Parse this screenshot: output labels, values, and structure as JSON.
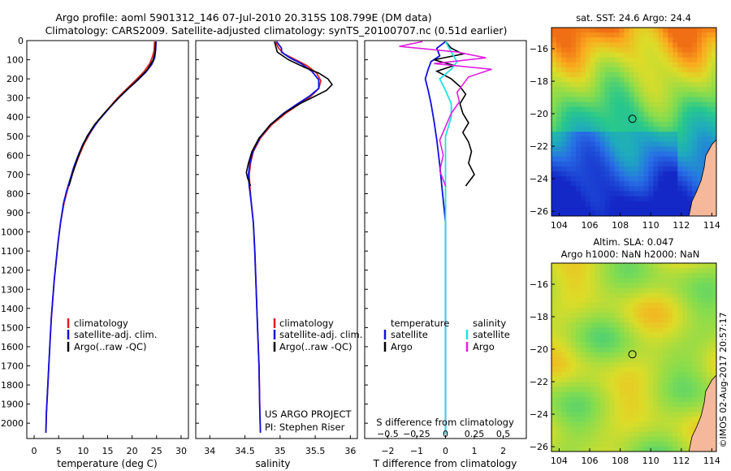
{
  "title_line1": "Argo profile: aoml 5901312_146 07-Jul-2010 20.315S 108.799E (DM data)",
  "title_line2": "Climatology: CARS2009. Satellite-adjusted climatology: synTS_20100707.nc (0.51d earlier)",
  "timestamp": "©IMOS 02-Aug-2017 20:57:17",
  "colors": {
    "climatology": "#e02020",
    "satellite": "#1010e0",
    "argo": "#000000",
    "argo_salinity": "#e020e0",
    "satellite_salinity": "#20e0e0"
  },
  "chart_data": [
    {
      "type": "line",
      "id": "temperature",
      "xlabel": "temperature (deg C)",
      "ylabel": "",
      "xlim": [
        -1.5,
        31.5
      ],
      "ylim": [
        2080,
        0
      ],
      "xticks": [
        0,
        5,
        10,
        15,
        20,
        25,
        30
      ],
      "xticklabels": [
        "0",
        "5",
        "10",
        "15",
        "20",
        "25",
        "30"
      ],
      "yticks": [
        0,
        100,
        200,
        300,
        400,
        500,
        600,
        700,
        800,
        900,
        1000,
        1100,
        1200,
        1300,
        1400,
        1500,
        1600,
        1700,
        1800,
        1900,
        2000
      ],
      "yticklabels": [
        "0",
        "100",
        "200",
        "300",
        "400",
        "500",
        "600",
        "700",
        "800",
        "900",
        "1000",
        "1100",
        "1200",
        "1300",
        "1400",
        "1500",
        "1600",
        "1700",
        "1800",
        "1900",
        "2000"
      ],
      "legend": [
        "climatology",
        "satellite-adj. clim.",
        "Argo(..raw -QC)"
      ],
      "series": [
        {
          "name": "climatology",
          "color": "#e02020",
          "points": [
            [
              24.6,
              5
            ],
            [
              24.5,
              50
            ],
            [
              24.2,
              80
            ],
            [
              23.6,
              120
            ],
            [
              22.5,
              160
            ],
            [
              21.0,
              200
            ],
            [
              19.0,
              250
            ],
            [
              17.0,
              300
            ],
            [
              15.0,
              360
            ],
            [
              13.0,
              420
            ],
            [
              11.5,
              480
            ],
            [
              10.2,
              540
            ],
            [
              9.2,
              600
            ],
            [
              8.3,
              660
            ],
            [
              7.5,
              720
            ],
            [
              6.8,
              780
            ],
            [
              6.1,
              850
            ],
            [
              5.4,
              950
            ],
            [
              4.9,
              1050
            ],
            [
              4.5,
              1150
            ],
            [
              4.1,
              1250
            ],
            [
              3.8,
              1350
            ],
            [
              3.5,
              1450
            ],
            [
              3.3,
              1550
            ],
            [
              3.1,
              1650
            ],
            [
              2.9,
              1750
            ],
            [
              2.7,
              1850
            ],
            [
              2.5,
              1950
            ],
            [
              2.4,
              2050
            ]
          ]
        },
        {
          "name": "satellite",
          "color": "#1010e0",
          "points": [
            [
              24.9,
              5
            ],
            [
              24.8,
              50
            ],
            [
              24.6,
              90
            ],
            [
              24.0,
              125
            ],
            [
              22.8,
              165
            ],
            [
              21.2,
              205
            ],
            [
              19.3,
              250
            ],
            [
              17.2,
              300
            ],
            [
              15.1,
              360
            ],
            [
              13.1,
              420
            ],
            [
              11.4,
              480
            ],
            [
              10.0,
              540
            ],
            [
              9.0,
              600
            ],
            [
              8.1,
              660
            ],
            [
              7.4,
              720
            ],
            [
              6.7,
              780
            ],
            [
              6.0,
              850
            ],
            [
              5.4,
              950
            ],
            [
              4.9,
              1050
            ],
            [
              4.5,
              1150
            ],
            [
              4.1,
              1250
            ],
            [
              3.8,
              1350
            ],
            [
              3.5,
              1450
            ],
            [
              3.3,
              1550
            ],
            [
              3.1,
              1650
            ],
            [
              2.9,
              1750
            ],
            [
              2.7,
              1850
            ],
            [
              2.5,
              1950
            ],
            [
              2.4,
              2050
            ]
          ]
        },
        {
          "name": "Argo",
          "color": "#000000",
          "points": [
            [
              24.8,
              5
            ],
            [
              24.7,
              60
            ],
            [
              24.3,
              100
            ],
            [
              23.2,
              150
            ],
            [
              21.9,
              185
            ],
            [
              20.5,
              220
            ],
            [
              18.6,
              265
            ],
            [
              16.5,
              320
            ],
            [
              14.3,
              380
            ],
            [
              12.3,
              440
            ],
            [
              10.8,
              500
            ],
            [
              9.7,
              560
            ],
            [
              8.8,
              620
            ],
            [
              7.9,
              690
            ],
            [
              7.1,
              760
            ]
          ]
        }
      ]
    },
    {
      "type": "line",
      "id": "salinity",
      "xlabel": "salinity",
      "xlim": [
        33.8,
        36.1
      ],
      "ylim": [
        2080,
        0
      ],
      "xticks": [
        34,
        34.5,
        35,
        35.5,
        36
      ],
      "xticklabels": [
        "34",
        "34.5",
        "35",
        "35.5",
        "36"
      ],
      "legend": [
        "climatology",
        "satellite-adj. clim.",
        "Argo(..raw -QC)"
      ],
      "annotation": [
        "US ARGO PROJECT",
        "PI: Stephen Riser"
      ],
      "series": [
        {
          "name": "climatology",
          "color": "#e02020",
          "points": [
            [
              34.93,
              5
            ],
            [
              34.98,
              40
            ],
            [
              35.06,
              70
            ],
            [
              35.22,
              100
            ],
            [
              35.38,
              130
            ],
            [
              35.52,
              170
            ],
            [
              35.58,
              210
            ],
            [
              35.55,
              250
            ],
            [
              35.44,
              290
            ],
            [
              35.28,
              330
            ],
            [
              35.08,
              380
            ],
            [
              34.88,
              440
            ],
            [
              34.72,
              510
            ],
            [
              34.62,
              580
            ],
            [
              34.58,
              640
            ],
            [
              34.56,
              700
            ],
            [
              34.57,
              760
            ],
            [
              34.59,
              850
            ],
            [
              34.62,
              950
            ],
            [
              34.64,
              1100
            ],
            [
              34.66,
              1300
            ],
            [
              34.68,
              1500
            ],
            [
              34.7,
              1700
            ],
            [
              34.71,
              1900
            ],
            [
              34.72,
              2050
            ]
          ]
        },
        {
          "name": "satellite",
          "color": "#1010e0",
          "points": [
            [
              34.95,
              5
            ],
            [
              35.02,
              40
            ],
            [
              35.02,
              60
            ],
            [
              35.14,
              90
            ],
            [
              35.3,
              120
            ],
            [
              35.45,
              160
            ],
            [
              35.55,
              205
            ],
            [
              35.55,
              250
            ],
            [
              35.42,
              290
            ],
            [
              35.25,
              330
            ],
            [
              35.05,
              380
            ],
            [
              34.86,
              440
            ],
            [
              34.71,
              510
            ],
            [
              34.61,
              580
            ],
            [
              34.57,
              640
            ],
            [
              34.55,
              700
            ],
            [
              34.56,
              760
            ],
            [
              34.59,
              850
            ],
            [
              34.62,
              950
            ],
            [
              34.64,
              1100
            ],
            [
              34.66,
              1300
            ],
            [
              34.68,
              1500
            ],
            [
              34.7,
              1700
            ],
            [
              34.71,
              1900
            ],
            [
              34.72,
              2050
            ]
          ]
        },
        {
          "name": "Argo",
          "color": "#000000",
          "points": [
            [
              34.92,
              5
            ],
            [
              34.96,
              60
            ],
            [
              35.12,
              100
            ],
            [
              35.35,
              140
            ],
            [
              35.55,
              170
            ],
            [
              35.68,
              200
            ],
            [
              35.74,
              230
            ],
            [
              35.66,
              260
            ],
            [
              35.5,
              290
            ],
            [
              35.28,
              330
            ],
            [
              35.06,
              380
            ],
            [
              34.86,
              440
            ],
            [
              34.7,
              510
            ],
            [
              34.6,
              580
            ],
            [
              34.55,
              640
            ],
            [
              34.52,
              690
            ],
            [
              34.54,
              720
            ],
            [
              34.58,
              760
            ]
          ]
        }
      ]
    },
    {
      "type": "line",
      "id": "difference",
      "xlabel": "T difference from climatology",
      "xlabel_top": "S difference from climatology",
      "xlim": [
        -2.8,
        2.8
      ],
      "ylim": [
        2080,
        0
      ],
      "xticks": [
        -2,
        -1,
        0,
        1,
        2
      ],
      "xticklabels": [
        "−2",
        "−1",
        "0",
        "1",
        "2"
      ],
      "sticks": [
        -0.5,
        -0.25,
        0,
        0.25,
        0.5
      ],
      "sticklabels": [
        "−0.5",
        "−0.25",
        "0",
        "0.25",
        "0.5"
      ],
      "legend_temperature": {
        "header": "temperature",
        "items": [
          "satellite",
          "Argo"
        ]
      },
      "legend_salinity": {
        "header": "salinity",
        "items": [
          "satellite",
          "Argo"
        ]
      },
      "series": [
        {
          "name": "temperature satellite",
          "color": "#1010e0",
          "points": [
            [
              0.0,
              5
            ],
            [
              -0.3,
              40
            ],
            [
              -0.2,
              80
            ],
            [
              -0.5,
              110
            ],
            [
              -0.6,
              150
            ],
            [
              -0.7,
              200
            ],
            [
              -0.6,
              260
            ],
            [
              -0.5,
              330
            ],
            [
              -0.4,
              420
            ],
            [
              -0.3,
              520
            ],
            [
              -0.2,
              650
            ],
            [
              -0.1,
              800
            ],
            [
              0,
              950
            ],
            [
              0,
              1200
            ],
            [
              0,
              1500
            ],
            [
              0,
              1800
            ],
            [
              0,
              2050
            ]
          ]
        },
        {
          "name": "temperature Argo",
          "color": "#000000",
          "points": [
            [
              0,
              5
            ],
            [
              0.2,
              40
            ],
            [
              0.6,
              70
            ],
            [
              -0.4,
              100
            ],
            [
              0.3,
              130
            ],
            [
              -0.3,
              160
            ],
            [
              0.2,
              200
            ],
            [
              0.5,
              240
            ],
            [
              0.7,
              280
            ],
            [
              0.5,
              330
            ],
            [
              0.6,
              380
            ],
            [
              0.8,
              430
            ],
            [
              0.6,
              480
            ],
            [
              0.8,
              530
            ],
            [
              0.9,
              580
            ],
            [
              0.8,
              640
            ],
            [
              1.0,
              700
            ],
            [
              0.7,
              760
            ]
          ]
        },
        {
          "name": "salinity satellite",
          "color": "#20e0e0",
          "points": [
            [
              0,
              5
            ],
            [
              0.05,
              60
            ],
            [
              0.1,
              110
            ],
            [
              0.05,
              150
            ],
            [
              -0.05,
              200
            ],
            [
              0,
              260
            ],
            [
              0.05,
              330
            ],
            [
              0.05,
              400
            ],
            [
              0,
              500
            ],
            [
              0,
              700
            ],
            [
              0,
              1000
            ],
            [
              0,
              1400
            ],
            [
              0,
              1800
            ],
            [
              0,
              2060
            ]
          ]
        },
        {
          "name": "salinity Argo",
          "color": "#e020e0",
          "points": [
            [
              -0.2,
              5
            ],
            [
              -0.4,
              30
            ],
            [
              0.1,
              60
            ],
            [
              0.35,
              90
            ],
            [
              -0.1,
              120
            ],
            [
              0.4,
              150
            ],
            [
              0.2,
              190
            ],
            [
              0.15,
              230
            ],
            [
              0.1,
              270
            ],
            [
              0.12,
              320
            ],
            [
              0.05,
              380
            ],
            [
              0.0,
              450
            ],
            [
              -0.05,
              520
            ],
            [
              -0.02,
              600
            ],
            [
              -0.05,
              680
            ],
            [
              0,
              760
            ]
          ]
        }
      ]
    },
    {
      "type": "heatmap",
      "id": "sst_map",
      "title": "sat. SST: 24.6 Argo: 24.4",
      "xlim": [
        103.5,
        114.3
      ],
      "ylim": [
        -26.3,
        -14.7
      ],
      "xticks": [
        104,
        106,
        108,
        110,
        112,
        114
      ],
      "yticks": [
        -16,
        -18,
        -20,
        -22,
        -24,
        -26
      ],
      "marker": {
        "lon": 108.799,
        "lat": -20.315
      }
    },
    {
      "type": "heatmap",
      "id": "sla_map",
      "title": "Altim. SLA: 0.047",
      "subtitle": "Argo h1000: NaN h2000: NaN",
      "xlim": [
        103.5,
        114.3
      ],
      "ylim": [
        -26.3,
        -14.7
      ],
      "xticks": [
        104,
        106,
        108,
        110,
        112,
        114
      ],
      "yticks": [
        -16,
        -18,
        -20,
        -22,
        -24,
        -26
      ],
      "marker": {
        "lon": 108.799,
        "lat": -20.315
      }
    }
  ]
}
